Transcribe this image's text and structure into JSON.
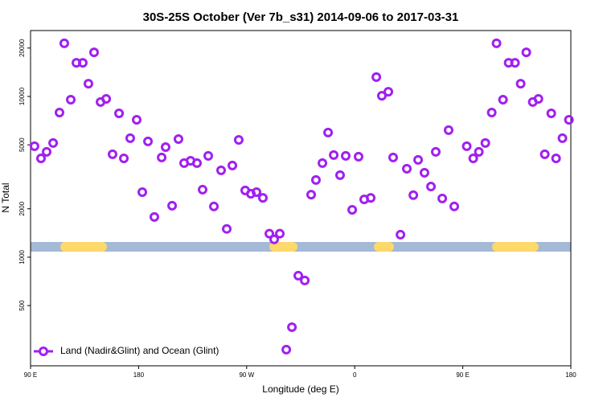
{
  "chart_data": {
    "type": "scatter",
    "title": "30S-25S October (Ver 7b_s31)   2014-09-06 to 2017-03-31",
    "x_label": "Longitude (deg E)",
    "y_label": "N Total",
    "log_y": true,
    "xlim": [
      90,
      540
    ],
    "xticks": [
      {
        "value": 90,
        "label": "90 E"
      },
      {
        "value": 180,
        "label": "180"
      },
      {
        "value": 270,
        "label": "90 W"
      },
      {
        "value": 360,
        "label": "0"
      },
      {
        "value": 450,
        "label": "90 E"
      },
      {
        "value": 540,
        "label": "180"
      }
    ],
    "ylim": [
      211,
      25700
    ],
    "yticks": [
      500,
      1000,
      2000,
      5000,
      10000,
      20000
    ],
    "series": [
      {
        "name": "Land (Nadir&Glint) and Ocean (Glint)",
        "color": "#a020f0",
        "x": [
          93.3,
          98.7,
          103.4,
          108.8,
          114.1,
          118.1,
          123.5,
          128.2,
          133.5,
          138.2,
          142.9,
          148.3,
          153,
          158.3,
          163.7,
          167.7,
          173,
          178.4,
          183.1,
          187.8,
          193.1,
          199.2,
          202.5,
          207.9,
          213.2,
          217.9,
          223.3,
          228.6,
          233.3,
          238,
          242.7,
          248.7,
          253.4,
          258.1,
          263.4,
          268.8,
          273.5,
          278.2,
          283.5,
          288.9,
          292.9,
          297.6,
          303,
          307.7,
          313,
          318.4,
          323.7,
          327.7,
          333.1,
          337.8,
          342.5,
          347.8,
          352.5,
          357.9,
          363.2,
          367.9,
          373.3,
          378,
          382.6,
          388,
          392,
          398.1,
          403.4,
          408.8,
          412.8,
          418.1,
          423.5,
          427.5,
          432.9,
          438.2,
          442.9,
          453.3,
          458.7,
          463.4,
          468.8,
          474.1,
          478.1,
          483.5,
          488.2,
          493.5,
          498.2,
          502.9,
          508.3,
          513,
          518.3,
          523.7,
          527.7,
          533,
          538.4
        ],
        "values": [
          4900,
          4120,
          4520,
          5130,
          7940,
          21400,
          9550,
          16200,
          16200,
          12000,
          18800,
          9230,
          9660,
          4370,
          7850,
          4120,
          5500,
          7160,
          2540,
          5250,
          1780,
          4170,
          4840,
          2090,
          5430,
          3850,
          3980,
          3850,
          2630,
          4270,
          2070,
          3470,
          1500,
          3720,
          5370,
          2600,
          2480,
          2540,
          2340,
          1400,
          1290,
          1400,
          266,
          367,
          767,
          716,
          2450,
          3020,
          3850,
          5960,
          4320,
          3240,
          4270,
          1970,
          4220,
          2290,
          2340,
          13200,
          10100,
          10700,
          4170,
          1380,
          3550,
          2430,
          4030,
          3350,
          2750,
          4520,
          2320,
          6170,
          2070,
          4900,
          4120,
          4520,
          5130,
          7940,
          21400,
          9550,
          16200,
          16200,
          12000,
          18800,
          9230,
          9660,
          4370,
          7850,
          4120,
          5500,
          7160
        ]
      }
    ]
  }
}
